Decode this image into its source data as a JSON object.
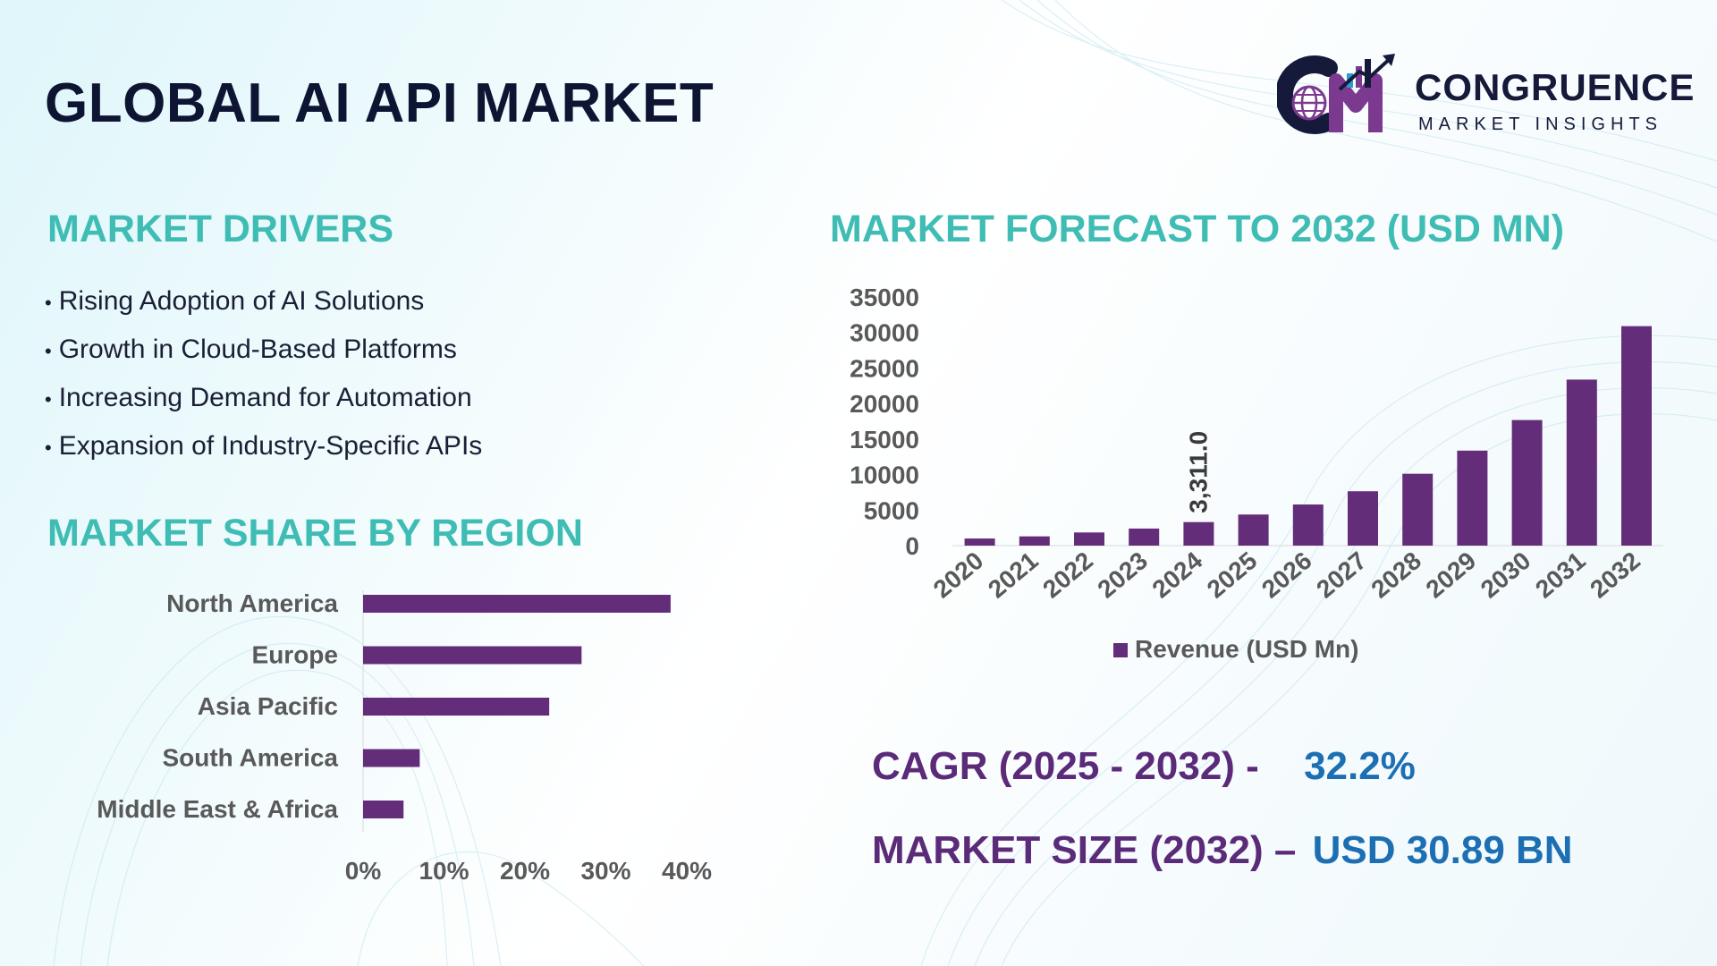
{
  "title": "GLOBAL AI API MARKET",
  "logo": {
    "name": "CONGRUENCE",
    "subtitle": "MARKET INSIGHTS"
  },
  "drivers": {
    "heading": "MARKET DRIVERS",
    "items": [
      "Rising Adoption of AI Solutions",
      "Growth in Cloud-Based Platforms",
      "Increasing Demand for Automation",
      "Expansion of Industry-Specific APIs"
    ]
  },
  "region": {
    "heading": "MARKET SHARE BY REGION"
  },
  "forecast": {
    "heading": "MARKET FORECAST TO 2032 (USD MN)"
  },
  "stats": {
    "cagr_label": "CAGR (2025 - 2032) -",
    "cagr_value": "32.2%",
    "size_label": "MARKET SIZE (2032) –",
    "size_value": "USD 30.89 BN"
  },
  "colors": {
    "bar": "#642d7a",
    "heading": "#3fbdb4",
    "stat_label": "#5b2b7a",
    "stat_value": "#1c6fb3"
  },
  "chart_data": [
    {
      "type": "bar",
      "orientation": "horizontal",
      "title": "MARKET SHARE BY REGION",
      "categories": [
        "North America",
        "Europe",
        "Asia Pacific",
        "South America",
        "Middle East & Africa"
      ],
      "values": [
        38,
        27,
        23,
        7,
        5
      ],
      "x_ticks": [
        "0%",
        "10%",
        "20%",
        "30%",
        "40%"
      ],
      "xlim": [
        0,
        40
      ],
      "xlabel": "",
      "ylabel": "",
      "grid": false
    },
    {
      "type": "bar",
      "title": "MARKET FORECAST TO 2032 (USD MN)",
      "categories": [
        "2020",
        "2021",
        "2022",
        "2023",
        "2024",
        "2025",
        "2026",
        "2027",
        "2028",
        "2029",
        "2030",
        "2031",
        "2032"
      ],
      "series": [
        {
          "name": "Revenue (USD Mn)",
          "values": [
            1000,
            1300,
            1850,
            2400,
            3311,
            4378,
            5787,
            7650,
            10114,
            13370,
            17676,
            23368,
            30890
          ]
        }
      ],
      "y_ticks": [
        "0",
        "5000",
        "10000",
        "15000",
        "20000",
        "25000",
        "30000",
        "35000"
      ],
      "ylim": [
        0,
        35000
      ],
      "annotations": [
        {
          "category": "2024",
          "label": "3,311.0"
        }
      ],
      "legend": "bottom",
      "grid": false
    }
  ]
}
